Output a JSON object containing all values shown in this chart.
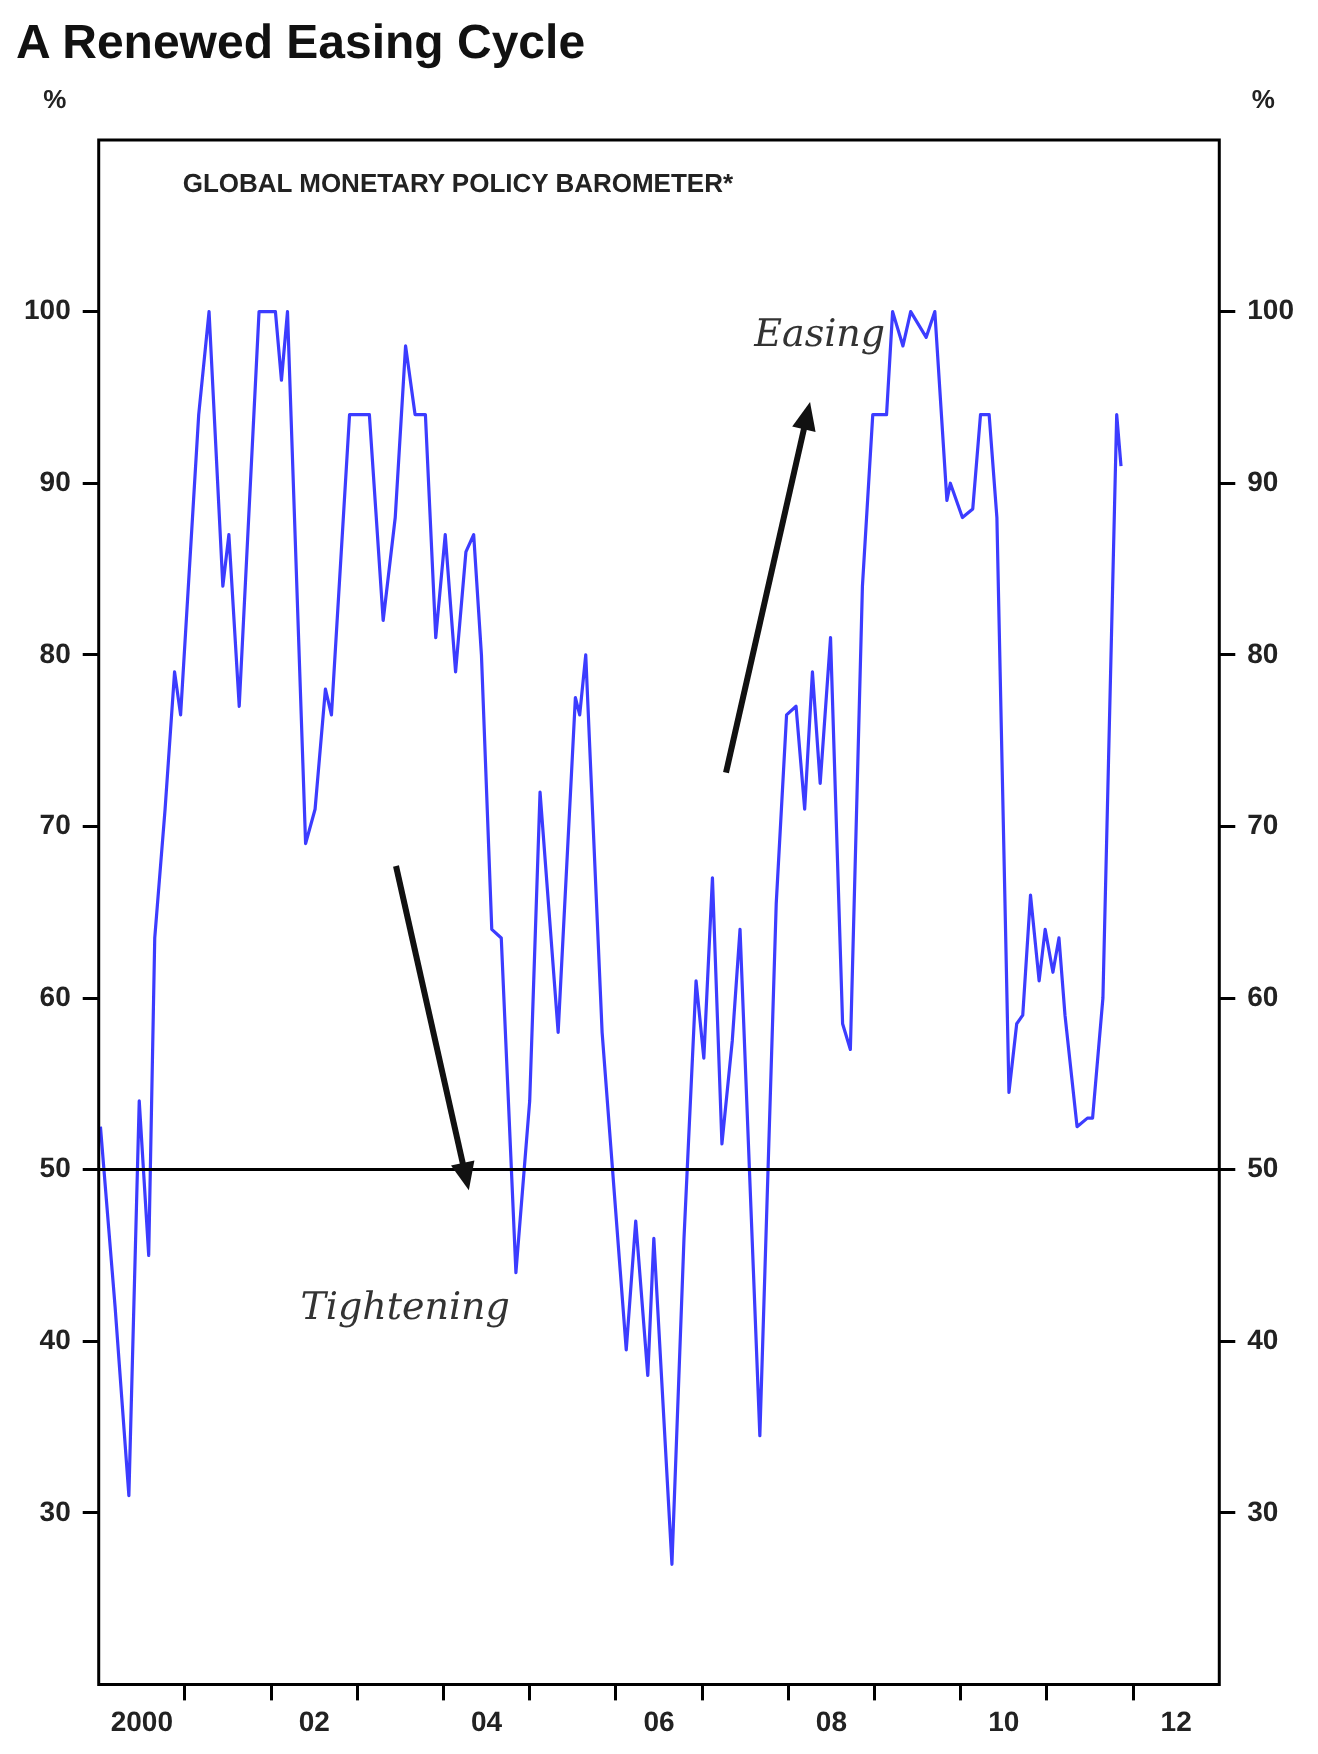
{
  "chart_data": {
    "type": "line",
    "title": "A Renewed Easing Cycle",
    "subtitle": "GLOBAL MONETARY POLICY BAROMETER*",
    "ylabel": "%",
    "y2label": "%",
    "annotations": [
      "Easing",
      "Tightening"
    ],
    "x": [
      1999.52,
      1999.69,
      1999.85,
      1999.97,
      2000.08,
      2000.15,
      2000.27,
      2000.38,
      2000.45,
      2000.66,
      2000.78,
      2000.94,
      2001.01,
      2001.13,
      2001.36,
      2001.55,
      2001.62,
      2001.69,
      2001.9,
      2002.01,
      2002.13,
      2002.2,
      2002.41,
      2002.64,
      2002.8,
      2002.94,
      2003.06,
      2003.17,
      2003.29,
      2003.41,
      2003.52,
      2003.64,
      2003.76,
      2003.85,
      2003.94,
      2004.06,
      2004.17,
      2004.34,
      2004.5,
      2004.62,
      2004.83,
      2005.03,
      2005.08,
      2005.15,
      2005.34,
      2005.62,
      2005.73,
      2005.87,
      2005.94,
      2006.15,
      2006.29,
      2006.43,
      2006.52,
      2006.62,
      2006.73,
      2006.85,
      2006.94,
      2007.17,
      2007.36,
      2007.48,
      2007.59,
      2007.69,
      2007.78,
      2007.87,
      2007.99,
      2008.13,
      2008.22,
      2008.36,
      2008.48,
      2008.64,
      2008.71,
      2008.83,
      2008.92,
      2009.1,
      2009.2,
      2009.34,
      2009.38,
      2009.52,
      2009.64,
      2009.73,
      2009.83,
      2009.92,
      2010.06,
      2010.15,
      2010.22,
      2010.31,
      2010.41,
      2010.48,
      2010.57,
      2010.64,
      2010.71,
      2010.85,
      2010.97,
      2011.03,
      2011.15,
      2011.31,
      2011.36
    ],
    "series": [
      {
        "color": "#3c3cff",
        "values": [
          52.5,
          42,
          31,
          54,
          45,
          63.5,
          71,
          79,
          76.5,
          94,
          100,
          84,
          87,
          77,
          100,
          100,
          96,
          100,
          69,
          71,
          78,
          76.5,
          94,
          94,
          82,
          88,
          98,
          94,
          94,
          81,
          87,
          79,
          86,
          87,
          80,
          64,
          63.5,
          44,
          54,
          72,
          58,
          77.5,
          76.5,
          80,
          58,
          39.5,
          47,
          38,
          46,
          27,
          46,
          61,
          56.5,
          67,
          51.5,
          57.5,
          64,
          34.5,
          65.5,
          76.5,
          77,
          71,
          79,
          72.5,
          81,
          58.5,
          57,
          84,
          94,
          94,
          100,
          98,
          100,
          98.5,
          100,
          89,
          90,
          88,
          88.5,
          94,
          94,
          88,
          54.5,
          58.5,
          59,
          66,
          61,
          64,
          61.5,
          63.5,
          59,
          52.5,
          53,
          53,
          60,
          94,
          91
        ]
      }
    ],
    "xlim": [
      1999.5,
      2012.5
    ],
    "xticks": [
      2000,
      {
        "value": 2000.5,
        "label": null
      },
      {
        "value": 2001.5,
        "label": null
      },
      {
        "value": 2002,
        "label": "02"
      },
      {
        "value": 2002.5,
        "label": null
      },
      {
        "value": 2003.5,
        "label": null
      },
      {
        "value": 2004,
        "label": "04"
      },
      {
        "value": 2004.5,
        "label": null
      },
      {
        "value": 2005.5,
        "label": null
      },
      {
        "value": 2006,
        "label": "06"
      },
      {
        "value": 2006.5,
        "label": null
      },
      {
        "value": 2007.5,
        "label": null
      },
      {
        "value": 2008,
        "label": "08"
      },
      {
        "value": 2008.5,
        "label": null
      },
      {
        "value": 2009.5,
        "label": null
      },
      {
        "value": 2010,
        "label": "10"
      },
      {
        "value": 2010.5,
        "label": null
      },
      {
        "value": 2011.5,
        "label": null
      },
      {
        "value": 2012,
        "label": "12"
      }
    ],
    "ylim": [
      20,
      110
    ],
    "yticks": [
      30,
      40,
      50,
      60,
      70,
      80,
      90,
      100
    ],
    "y2lim": [
      20,
      110
    ],
    "y2ticks": [
      30,
      40,
      50,
      60,
      70,
      80,
      90,
      100
    ],
    "ref_lines": [
      {
        "axis": "y",
        "value": 50,
        "color": "#000000"
      }
    ],
    "grid": false,
    "legend": false,
    "marker": "none",
    "line_style": "solid"
  }
}
